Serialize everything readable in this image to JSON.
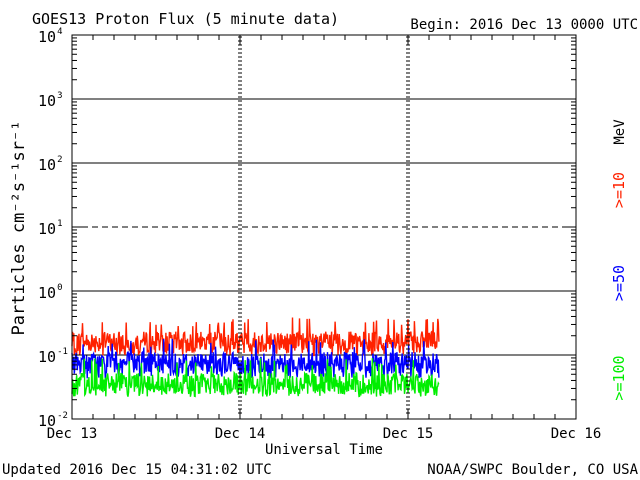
{
  "chart_data": {
    "type": "line",
    "title": "GOES13 Proton Flux (5 minute data)",
    "begin": "Begin: 2016 Dec 13 0000 UTC",
    "xlabel": "Universal Time",
    "ylabel": "Particles cm⁻²s⁻¹sr⁻¹",
    "unit_label": "MeV",
    "footer_left": "Updated 2016 Dec 15 04:31:02 UTC",
    "footer_right": "NOAA/SWPC Boulder, CO USA",
    "x_ticks": [
      "Dec 13",
      "Dec 14",
      "Dec 15",
      "Dec 16"
    ],
    "x_range_hours": [
      0,
      72
    ],
    "y_scale": "log",
    "ylim": [
      0.01,
      10000
    ],
    "y_ticks": [
      {
        "base": "10",
        "exp": "4"
      },
      {
        "base": "10",
        "exp": "3"
      },
      {
        "base": "10",
        "exp": "2"
      },
      {
        "base": "10",
        "exp": "1"
      },
      {
        "base": "10",
        "exp": "0"
      },
      {
        "base": "10",
        "exp": "-1"
      },
      {
        "base": "10",
        "exp": "-2"
      }
    ],
    "reference_lines": [
      {
        "value": 1000,
        "style": "solid"
      },
      {
        "value": 100,
        "style": "solid"
      },
      {
        "value": 10,
        "style": "dashed"
      },
      {
        "value": 1,
        "style": "solid"
      },
      {
        "value": 0.1,
        "style": "solid"
      }
    ],
    "data_end_hour": 52.5,
    "series": [
      {
        "name": ">=10",
        "color": "#ff2200",
        "median": 0.16,
        "low": 0.11,
        "high": 0.28
      },
      {
        "name": ">=50",
        "color": "#0000ff",
        "median": 0.075,
        "low": 0.048,
        "high": 0.13
      },
      {
        "name": ">=100",
        "color": "#00ee00",
        "median": 0.036,
        "low": 0.025,
        "high": 0.065
      }
    ]
  }
}
